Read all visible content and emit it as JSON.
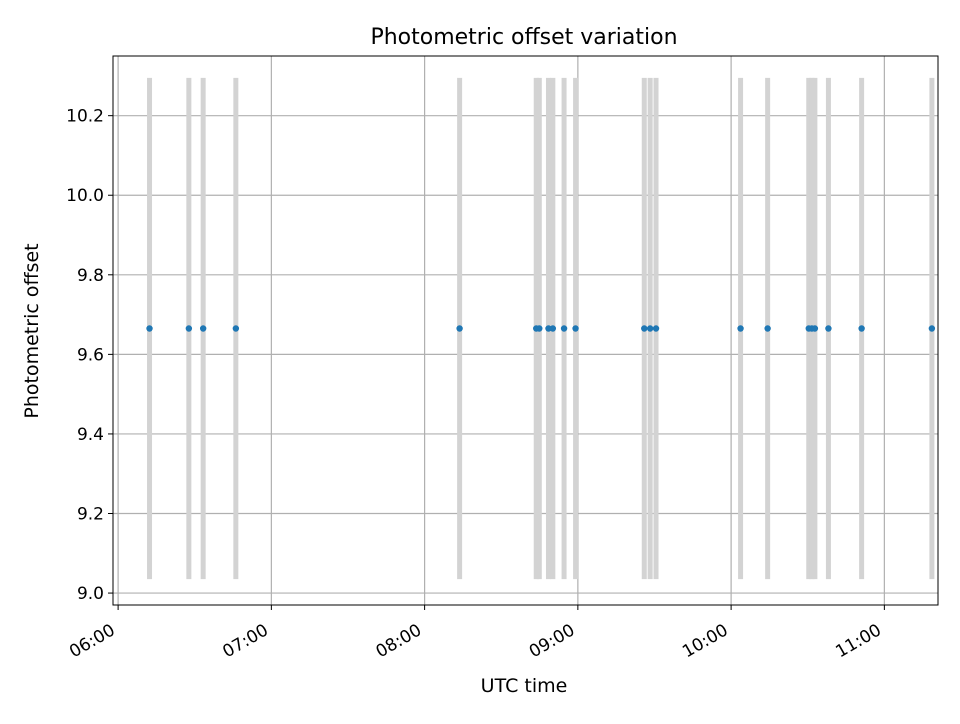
{
  "chart_data": {
    "type": "scatter",
    "title": "Photometric offset variation",
    "xlabel": "UTC time",
    "ylabel": "Photometric offset",
    "x_tick_labels": [
      "06:00",
      "07:00",
      "08:00",
      "09:00",
      "10:00",
      "11:00"
    ],
    "y_tick_labels": [
      "9.0",
      "9.2",
      "9.4",
      "9.6",
      "9.8",
      "10.0",
      "10.2"
    ],
    "x_ticks_minutes": [
      360,
      420,
      480,
      540,
      600,
      660
    ],
    "y_ticks": [
      9.0,
      9.2,
      9.4,
      9.6,
      9.8,
      10.0,
      10.2
    ],
    "xlim_minutes": [
      358,
      681
    ],
    "ylim": [
      8.97,
      10.35
    ],
    "x_minutes": [
      372.3,
      387.7,
      393.3,
      406.1,
      493.7,
      523.7,
      524.9,
      528.5,
      530.2,
      534.6,
      539.1,
      566.0,
      568.3,
      570.6,
      603.7,
      614.3,
      630.4,
      631.6,
      632.8,
      638.1,
      651.1,
      678.6
    ],
    "series": [
      {
        "values": [
          9.665,
          9.665,
          9.665,
          9.665,
          9.665,
          9.665,
          9.665,
          9.665,
          9.665,
          9.665,
          9.665,
          9.665,
          9.665,
          9.665,
          9.665,
          9.665,
          9.665,
          9.665,
          9.665,
          9.665,
          9.665,
          9.665
        ],
        "error_low": [
          9.035,
          9.035,
          9.035,
          9.035,
          9.035,
          9.035,
          9.035,
          9.035,
          9.035,
          9.035,
          9.035,
          9.035,
          9.035,
          9.035,
          9.035,
          9.035,
          9.035,
          9.035,
          9.035,
          9.035,
          9.035,
          9.035
        ],
        "error_high": [
          10.295,
          10.295,
          10.295,
          10.295,
          10.295,
          10.295,
          10.295,
          10.295,
          10.295,
          10.295,
          10.295,
          10.295,
          10.295,
          10.295,
          10.295,
          10.295,
          10.295,
          10.295,
          10.295,
          10.295,
          10.295,
          10.295
        ]
      }
    ],
    "grid": true,
    "colors": {
      "point": "#1f77b4",
      "error_bar": "#d3d3d3",
      "grid": "#b0b0b0",
      "axes": "#000000"
    }
  }
}
